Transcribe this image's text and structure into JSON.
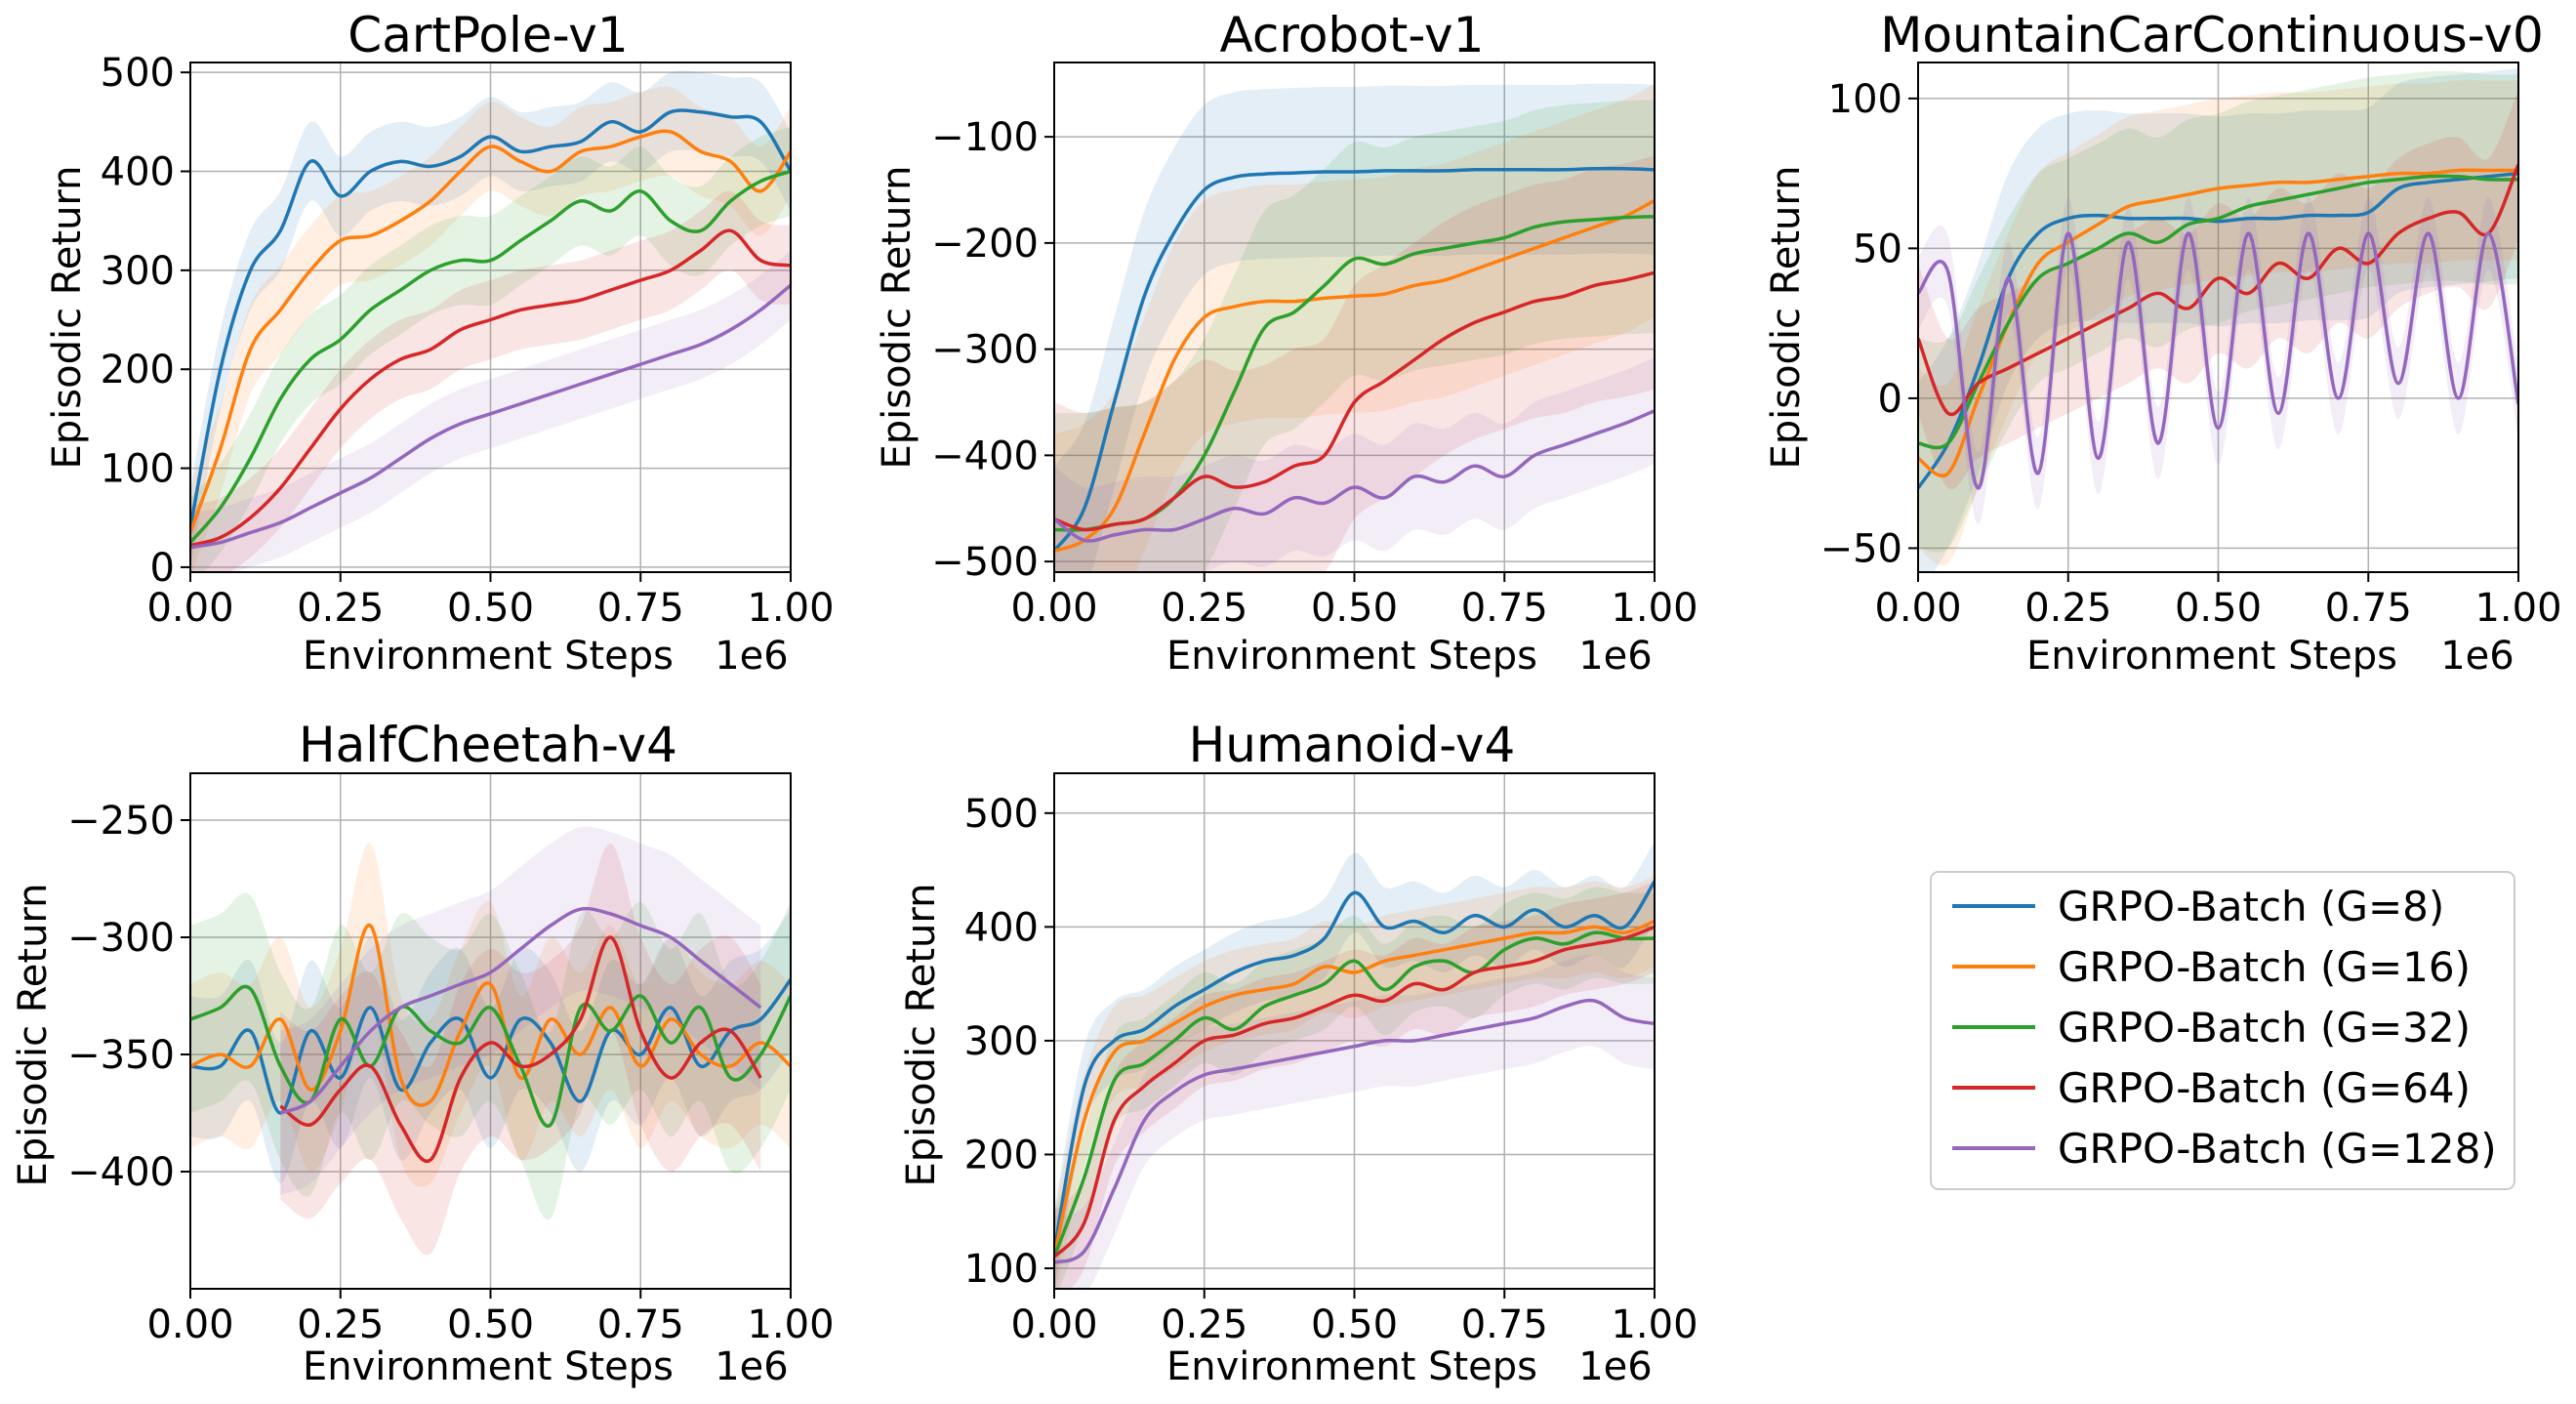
{
  "figure": {
    "x_axis_label": "Environment Steps",
    "y_axis_label": "Episodic Return",
    "x_scale_note": "1e6"
  },
  "legend": {
    "entries": [
      {
        "name": "GRPO-Batch (G=8)",
        "color": "#1f77b4"
      },
      {
        "name": "GRPO-Batch (G=16)",
        "color": "#ff7f0e"
      },
      {
        "name": "GRPO-Batch (G=32)",
        "color": "#2ca02c"
      },
      {
        "name": "GRPO-Batch (G=64)",
        "color": "#d62728"
      },
      {
        "name": "GRPO-Batch (G=128)",
        "color": "#9467bd"
      }
    ]
  },
  "chart_data": [
    {
      "type": "line",
      "title": "CartPole-v1",
      "xlabel": "Environment Steps",
      "ylabel": "Episodic Return",
      "xlim": [
        0,
        1.0
      ],
      "ylim": [
        -5,
        510
      ],
      "xticks": [
        0,
        0.25,
        0.5,
        0.75,
        1.0
      ],
      "xtick_labels": [
        "0.00",
        "0.25",
        "0.50",
        "0.75",
        "1.00"
      ],
      "yticks": [
        0,
        100,
        200,
        300,
        400,
        500
      ],
      "ytick_labels": [
        "0",
        "100",
        "200",
        "300",
        "400",
        "500"
      ],
      "grid": true,
      "x": [
        0,
        0.05,
        0.1,
        0.15,
        0.2,
        0.25,
        0.3,
        0.35,
        0.4,
        0.45,
        0.5,
        0.55,
        0.6,
        0.65,
        0.7,
        0.75,
        0.8,
        0.85,
        0.9,
        0.95,
        1.0
      ],
      "series": [
        {
          "name": "GRPO-Batch (G=8)",
          "values": [
            40,
            200,
            300,
            340,
            410,
            375,
            400,
            410,
            405,
            415,
            435,
            420,
            425,
            430,
            450,
            440,
            460,
            460,
            455,
            450,
            400
          ],
          "band": 40
        },
        {
          "name": "GRPO-Batch (G=16)",
          "values": [
            35,
            120,
            220,
            260,
            300,
            330,
            335,
            350,
            370,
            400,
            425,
            410,
            400,
            420,
            425,
            435,
            440,
            420,
            410,
            380,
            420
          ],
          "band": 45
        },
        {
          "name": "GRPO-Batch (G=32)",
          "values": [
            25,
            60,
            110,
            170,
            210,
            230,
            260,
            280,
            300,
            310,
            310,
            330,
            350,
            370,
            360,
            380,
            350,
            340,
            370,
            390,
            400
          ],
          "band": 45
        },
        {
          "name": "GRPO-Batch (G=64)",
          "values": [
            22,
            30,
            50,
            80,
            120,
            160,
            190,
            210,
            220,
            240,
            250,
            260,
            265,
            270,
            280,
            290,
            300,
            320,
            340,
            310,
            305
          ],
          "band": 40
        },
        {
          "name": "GRPO-Batch (G=128)",
          "values": [
            20,
            25,
            35,
            45,
            60,
            75,
            90,
            110,
            130,
            145,
            155,
            165,
            175,
            185,
            195,
            205,
            215,
            225,
            240,
            260,
            285
          ],
          "band": 35
        }
      ]
    },
    {
      "type": "line",
      "title": "Acrobot-v1",
      "xlabel": "Environment Steps",
      "ylabel": "Episodic Return",
      "xlim": [
        0,
        1.0
      ],
      "ylim": [
        -510,
        -30
      ],
      "xticks": [
        0,
        0.25,
        0.5,
        0.75,
        1.0
      ],
      "xtick_labels": [
        "0.00",
        "0.25",
        "0.50",
        "0.75",
        "1.00"
      ],
      "yticks": [
        -500,
        -400,
        -300,
        -200,
        -100
      ],
      "ytick_labels": [
        "−500",
        "−400",
        "−300",
        "−200",
        "−100"
      ],
      "grid": true,
      "x": [
        0,
        0.05,
        0.1,
        0.15,
        0.2,
        0.25,
        0.3,
        0.35,
        0.4,
        0.45,
        0.5,
        0.55,
        0.6,
        0.65,
        0.7,
        0.75,
        0.8,
        0.85,
        0.9,
        0.95,
        1.0
      ],
      "series": [
        {
          "name": "GRPO-Batch (G=8)",
          "values": [
            -490,
            -450,
            -350,
            -250,
            -190,
            -150,
            -138,
            -135,
            -134,
            -133,
            -133,
            -132,
            -132,
            -132,
            -131,
            -131,
            -131,
            -131,
            -130,
            -130,
            -131
          ],
          "band": 80
        },
        {
          "name": "GRPO-Batch (G=16)",
          "values": [
            -490,
            -480,
            -450,
            -380,
            -310,
            -270,
            -260,
            -255,
            -255,
            -252,
            -250,
            -248,
            -240,
            -235,
            -225,
            -215,
            -205,
            -195,
            -185,
            -175,
            -160
          ],
          "band": 110
        },
        {
          "name": "GRPO-Batch (G=32)",
          "values": [
            -470,
            -470,
            -465,
            -460,
            -440,
            -400,
            -340,
            -280,
            -265,
            -240,
            -215,
            -220,
            -210,
            -205,
            -200,
            -195,
            -185,
            -180,
            -178,
            -176,
            -175
          ],
          "band": 110
        },
        {
          "name": "GRPO-Batch (G=64)",
          "values": [
            -460,
            -470,
            -465,
            -460,
            -440,
            -420,
            -430,
            -425,
            -410,
            -400,
            -350,
            -330,
            -310,
            -290,
            -275,
            -265,
            -255,
            -250,
            -240,
            -235,
            -228
          ],
          "band": 110
        },
        {
          "name": "GRPO-Batch (G=128)",
          "values": [
            -460,
            -480,
            -475,
            -470,
            -470,
            -460,
            -450,
            -455,
            -440,
            -445,
            -430,
            -440,
            -420,
            -425,
            -410,
            -420,
            -400,
            -390,
            -380,
            -370,
            -358
          ],
          "band": 50
        }
      ]
    },
    {
      "type": "line",
      "title": "MountainCarContinuous-v0",
      "xlabel": "Environment Steps",
      "ylabel": "Episodic Return",
      "xlim": [
        0,
        1.0
      ],
      "ylim": [
        -58,
        112
      ],
      "xticks": [
        0,
        0.25,
        0.5,
        0.75,
        1.0
      ],
      "xtick_labels": [
        "0.00",
        "0.25",
        "0.50",
        "0.75",
        "1.00"
      ],
      "yticks": [
        -50,
        0,
        50,
        100
      ],
      "ytick_labels": [
        "−50",
        "0",
        "50",
        "100"
      ],
      "grid": true,
      "x": [
        0,
        0.05,
        0.1,
        0.15,
        0.2,
        0.25,
        0.3,
        0.35,
        0.4,
        0.45,
        0.5,
        0.55,
        0.6,
        0.65,
        0.7,
        0.75,
        0.8,
        0.85,
        0.9,
        0.95,
        1.0
      ],
      "series": [
        {
          "name": "GRPO-Batch (G=8)",
          "values": [
            -30,
            -15,
            10,
            40,
            55,
            60,
            61,
            60,
            60,
            60,
            59,
            60,
            60,
            61,
            61,
            62,
            70,
            72,
            73,
            74,
            75
          ],
          "band": 35
        },
        {
          "name": "GRPO-Batch (G=16)",
          "values": [
            -20,
            -25,
            0,
            25,
            45,
            52,
            58,
            64,
            66,
            68,
            70,
            71,
            72,
            72,
            73,
            74,
            75,
            75,
            76,
            76,
            76
          ],
          "band": 30
        },
        {
          "name": "GRPO-Batch (G=32)",
          "values": [
            -15,
            -15,
            5,
            25,
            40,
            45,
            50,
            55,
            52,
            58,
            60,
            64,
            66,
            68,
            70,
            72,
            73,
            74,
            74,
            73,
            73
          ],
          "band": 35
        },
        {
          "name": "GRPO-Batch (G=64)",
          "values": [
            20,
            -5,
            5,
            10,
            15,
            20,
            25,
            30,
            35,
            30,
            40,
            35,
            45,
            40,
            50,
            45,
            55,
            60,
            62,
            55,
            78
          ],
          "band": 25
        },
        {
          "name": "GRPO-Batch (G=128)",
          "values": [
            35,
            42,
            -30,
            40,
            -25,
            55,
            -20,
            52,
            -15,
            55,
            -10,
            55,
            -5,
            55,
            0,
            55,
            5,
            55,
            0,
            55,
            -2
          ],
          "band": 12
        }
      ]
    },
    {
      "type": "line",
      "title": "HalfCheetah-v4",
      "xlabel": "Environment Steps",
      "ylabel": "Episodic Return",
      "xlim": [
        0,
        1.0
      ],
      "ylim": [
        -450,
        -230
      ],
      "xticks": [
        0,
        0.25,
        0.5,
        0.75,
        1.0
      ],
      "xtick_labels": [
        "0.00",
        "0.25",
        "0.50",
        "0.75",
        "1.00"
      ],
      "yticks": [
        -400,
        -350,
        -300,
        -250
      ],
      "ytick_labels": [
        "−400",
        "−350",
        "−300",
        "−250"
      ],
      "grid": true,
      "x": [
        0,
        0.05,
        0.1,
        0.15,
        0.2,
        0.25,
        0.3,
        0.35,
        0.4,
        0.45,
        0.5,
        0.55,
        0.6,
        0.65,
        0.7,
        0.75,
        0.8,
        0.85,
        0.9,
        0.95,
        1.0
      ],
      "series": [
        {
          "name": "GRPO-Batch (G=8)",
          "values": [
            -355,
            -355,
            -340,
            -375,
            -340,
            -360,
            -330,
            -365,
            -345,
            -335,
            -360,
            -335,
            -345,
            -370,
            -340,
            -350,
            -330,
            -355,
            -340,
            -335,
            -318
          ],
          "band": 30
        },
        {
          "name": "GRPO-Batch (G=16)",
          "values": [
            -355,
            -350,
            -355,
            -335,
            -365,
            -340,
            -295,
            -360,
            -370,
            -340,
            -320,
            -360,
            -335,
            -350,
            -330,
            -355,
            -335,
            -350,
            -355,
            -345,
            -355
          ],
          "band": 35
        },
        {
          "name": "GRPO-Batch (G=32)",
          "values": [
            -335,
            -330,
            -322,
            -355,
            -370,
            -335,
            -355,
            -330,
            -340,
            -345,
            -330,
            -355,
            -380,
            -330,
            -340,
            -325,
            -345,
            -330,
            -360,
            -350,
            -325
          ],
          "band": 40
        },
        {
          "name": "GRPO-Batch (G=64)",
          "values": [
            null,
            null,
            null,
            -372,
            -380,
            -365,
            -355,
            -380,
            -395,
            -360,
            -345,
            -355,
            -350,
            -335,
            -300,
            -340,
            -360,
            -345,
            -340,
            -360,
            null
          ],
          "band": 40
        },
        {
          "name": "GRPO-Batch (G=128)",
          "values": [
            null,
            null,
            null,
            -375,
            -370,
            -355,
            -340,
            -330,
            -325,
            -320,
            -315,
            -305,
            -295,
            -288,
            -290,
            -295,
            -300,
            -310,
            -320,
            -330,
            null
          ],
          "band": 35
        }
      ]
    },
    {
      "type": "line",
      "title": "Humanoid-v4",
      "xlabel": "Environment Steps",
      "ylabel": "Episodic Return",
      "xlim": [
        0,
        1.0
      ],
      "ylim": [
        82,
        535
      ],
      "xticks": [
        0,
        0.25,
        0.5,
        0.75,
        1.0
      ],
      "xtick_labels": [
        "0.00",
        "0.25",
        "0.50",
        "0.75",
        "1.00"
      ],
      "yticks": [
        100,
        200,
        300,
        400,
        500
      ],
      "ytick_labels": [
        "100",
        "200",
        "300",
        "400",
        "500"
      ],
      "grid": true,
      "x": [
        0,
        0.05,
        0.1,
        0.15,
        0.2,
        0.25,
        0.3,
        0.35,
        0.4,
        0.45,
        0.5,
        0.55,
        0.6,
        0.65,
        0.7,
        0.75,
        0.8,
        0.85,
        0.9,
        0.95,
        1.0
      ],
      "series": [
        {
          "name": "GRPO-Batch (G=8)",
          "values": [
            115,
            260,
            300,
            310,
            330,
            345,
            360,
            370,
            375,
            390,
            430,
            400,
            405,
            395,
            410,
            400,
            415,
            400,
            410,
            400,
            440
          ],
          "band": 35
        },
        {
          "name": "GRPO-Batch (G=16)",
          "values": [
            110,
            230,
            290,
            300,
            315,
            330,
            340,
            345,
            350,
            365,
            360,
            370,
            375,
            380,
            385,
            390,
            395,
            395,
            400,
            395,
            405
          ],
          "band": 40
        },
        {
          "name": "GRPO-Batch (G=32)",
          "values": [
            110,
            180,
            265,
            280,
            300,
            320,
            310,
            330,
            340,
            350,
            370,
            345,
            365,
            370,
            360,
            380,
            390,
            385,
            395,
            390,
            390
          ],
          "band": 40
        },
        {
          "name": "GRPO-Batch (G=64)",
          "values": [
            110,
            140,
            230,
            260,
            280,
            300,
            305,
            315,
            320,
            330,
            340,
            335,
            350,
            345,
            360,
            365,
            370,
            380,
            385,
            390,
            400
          ],
          "band": 40
        },
        {
          "name": "GRPO-Batch (G=128)",
          "values": [
            105,
            115,
            170,
            230,
            255,
            270,
            275,
            280,
            285,
            290,
            295,
            300,
            300,
            305,
            310,
            315,
            320,
            330,
            335,
            320,
            315
          ],
          "band": 40
        }
      ]
    }
  ]
}
